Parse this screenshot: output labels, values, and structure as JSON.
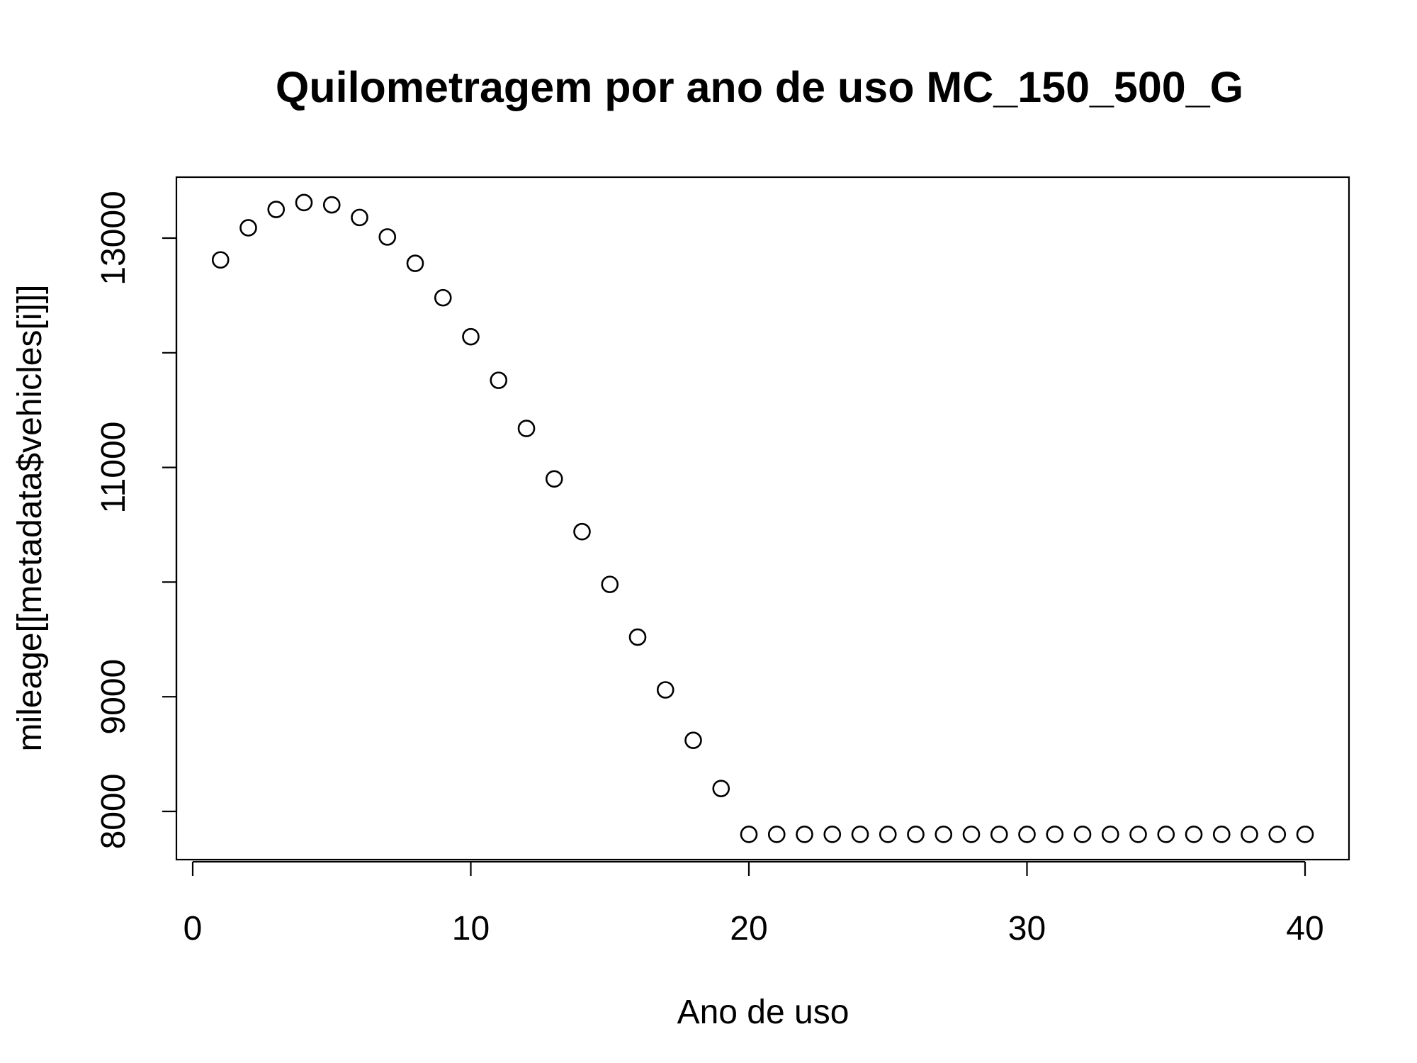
{
  "chart_data": {
    "type": "scatter",
    "title": "Quilometragem por ano de uso MC_150_500_G",
    "xlabel": "Ano de uso",
    "ylabel": "mileage[[metadata$vehicles[i]]]",
    "xlim": [
      0,
      40
    ],
    "ylim": [
      7800,
      13400
    ],
    "x_ticks": [
      0,
      10,
      20,
      30,
      40
    ],
    "x_tick_labels": [
      "0",
      "10",
      "20",
      "30",
      "40"
    ],
    "y_ticks": [
      8000,
      9000,
      10000,
      11000,
      12000,
      13000
    ],
    "y_tick_labels": [
      "8000",
      "9000",
      "",
      "11000",
      "",
      "13000"
    ],
    "grid": false,
    "legend": "none",
    "marker": "open-circle",
    "colors": {
      "marker": "#000000",
      "axes": "#000000",
      "background": "#ffffff"
    },
    "x": [
      1,
      2,
      3,
      4,
      5,
      6,
      7,
      8,
      9,
      10,
      11,
      12,
      13,
      14,
      15,
      16,
      17,
      18,
      19,
      20,
      21,
      22,
      23,
      24,
      25,
      26,
      27,
      28,
      29,
      30,
      31,
      32,
      33,
      34,
      35,
      36,
      37,
      38,
      39,
      40
    ],
    "y": [
      12810,
      13090,
      13250,
      13310,
      13290,
      13180,
      13010,
      12780,
      12480,
      12140,
      11760,
      11340,
      10900,
      10440,
      9980,
      9520,
      9060,
      8620,
      8200,
      7800,
      7800,
      7800,
      7800,
      7800,
      7800,
      7800,
      7800,
      7800,
      7800,
      7800,
      7800,
      7800,
      7800,
      7800,
      7800,
      7800,
      7800,
      7800,
      7800,
      7800
    ]
  }
}
